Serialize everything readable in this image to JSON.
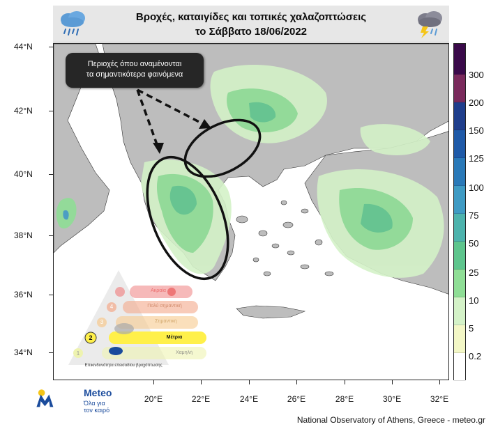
{
  "title": {
    "line1": "Βροχές, καταιγίδες και τοπικές χαλαζοπτώσεις",
    "line2": "το Σάββατο 18/06/2022"
  },
  "icons": {
    "left": "rain-cloud-icon",
    "right": "thunderstorm-cloud-icon"
  },
  "map": {
    "lat_labels": [
      "44°N",
      "42°N",
      "40°N",
      "38°N",
      "36°N",
      "34°N"
    ],
    "lon_labels": [
      "20°E",
      "22°E",
      "24°E",
      "26°E",
      "28°E",
      "30°E",
      "32°E"
    ],
    "lon_range": [
      17.6,
      33.0
    ],
    "lat_range": [
      33.0,
      44.0
    ]
  },
  "callout": {
    "line1": "Περιοχές όπου αναμένονται",
    "line2": "τα σημαντικότερα φαινόμενα"
  },
  "colorbar": {
    "labels": [
      "300",
      "200",
      "150",
      "125",
      "100",
      "75",
      "50",
      "25",
      "10",
      "5",
      "0.2"
    ],
    "colors": [
      "#3a0a4a",
      "#7a2a5c",
      "#1f3e8c",
      "#1f5aa8",
      "#2a79b8",
      "#3f9bc4",
      "#4db3ad",
      "#5ec58d",
      "#8fde96",
      "#d4f2c8",
      "#f3f7c6",
      "#ffffff"
    ]
  },
  "risk_legend": {
    "levels": [
      {
        "number": "5",
        "label": "Ακραία",
        "color": "#f08a8a"
      },
      {
        "number": "4",
        "label": "Πολύ σημαντική",
        "color": "#f3a98a"
      },
      {
        "number": "3",
        "label": "Σημαντική",
        "color": "#f6c98e"
      },
      {
        "number": "2",
        "label": "Μέτρια",
        "color": "#fff04a"
      },
      {
        "number": "1",
        "label": "Χαμηλή",
        "color": "#eef3b0"
      }
    ],
    "highlighted": "2",
    "footer": "Επικινδυνότητα επεισοδίου βροχόπτωσης"
  },
  "brand": {
    "name": "Meteo",
    "tagline_1": "Όλα για",
    "tagline_2": "τον καιρό"
  },
  "credit": "National Observatory of Athens, Greece - meteo.gr"
}
